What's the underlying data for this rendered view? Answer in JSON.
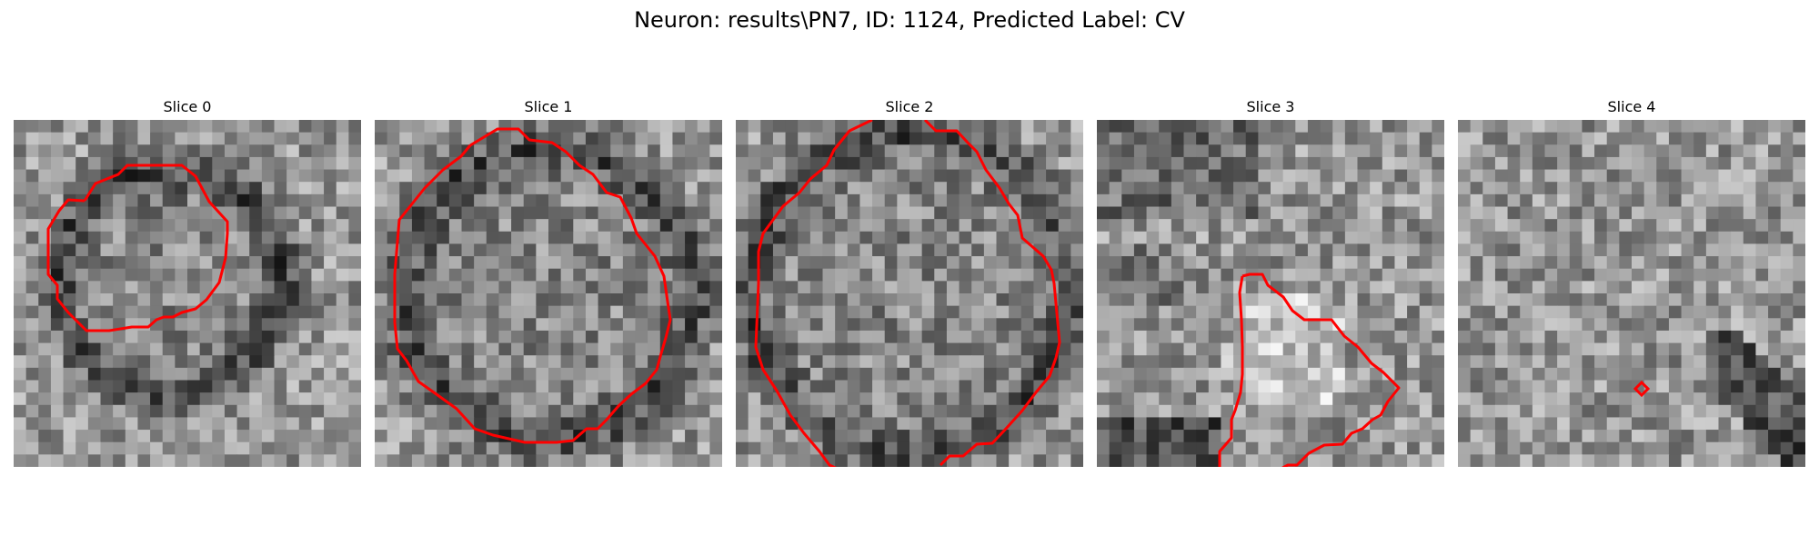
{
  "figure": {
    "title": "Neuron: results\\PN7, ID: 1124, Predicted Label: CV"
  },
  "colors": {
    "background": "#ffffff",
    "contour": "#ff0000",
    "colormap": "gray"
  },
  "panels": [
    {
      "title": "Slice 0",
      "seed": 11,
      "blob": "dark-ring"
    },
    {
      "title": "Slice 1",
      "seed": 23,
      "blob": "dark-ring"
    },
    {
      "title": "Slice 2",
      "seed": 37,
      "blob": "dark-ring-large"
    },
    {
      "title": "Slice 3",
      "seed": 53,
      "blob": "bright-region"
    },
    {
      "title": "Slice 4",
      "seed": 71,
      "blob": "noise"
    }
  ]
}
